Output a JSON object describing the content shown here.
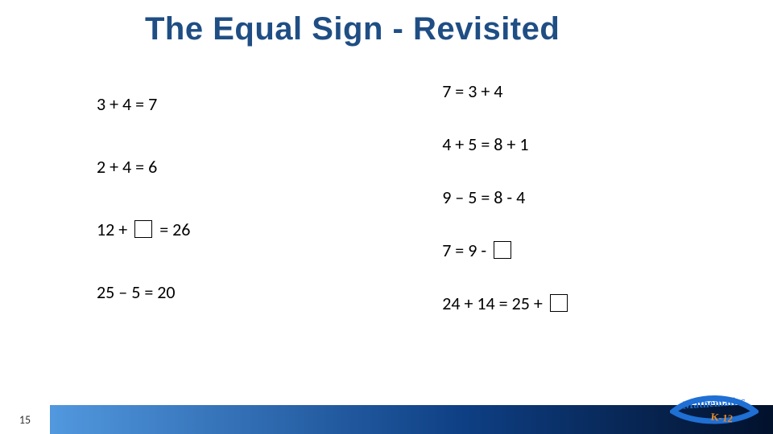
{
  "title": "The Equal Sign - Revisited",
  "title_color": "#1f4e84",
  "title_fontsize": 40,
  "body_font": "Calibri",
  "body_fontsize": 22,
  "body_color": "#000000",
  "left_column": {
    "items": [
      {
        "pre": "3 + 4 = 7",
        "has_blank": false,
        "post": ""
      },
      {
        "pre": "2 + 4 = 6",
        "has_blank": false,
        "post": ""
      },
      {
        "pre": "12 + ",
        "has_blank": true,
        "post": " = 26"
      },
      {
        "pre": "25 – 5 = 20",
        "has_blank": false,
        "post": ""
      }
    ]
  },
  "right_column": {
    "items": [
      {
        "pre": "7 = 3 + 4",
        "has_blank": false,
        "post": ""
      },
      {
        "pre": "4 + 5 = 8 + 1",
        "has_blank": false,
        "post": ""
      },
      {
        "pre": "9 – 5 = 8 - 4",
        "has_blank": false,
        "post": ""
      },
      {
        "pre": "7 = 9 - ",
        "has_blank": true,
        "post": ""
      },
      {
        "pre": "24 + 14 = 25 + ",
        "has_blank": true,
        "post": ""
      }
    ]
  },
  "page_number": "15",
  "footer_gradient": [
    "#5aa3e9",
    "#0e3f84",
    "#02112c"
  ],
  "logo": {
    "top_text": "Mathematics",
    "bottom_text": "K-12",
    "swoosh_color": "#1f6fd4",
    "text_top_color": "#1f6fd4",
    "text_bottom_color": "#e78a2a"
  }
}
